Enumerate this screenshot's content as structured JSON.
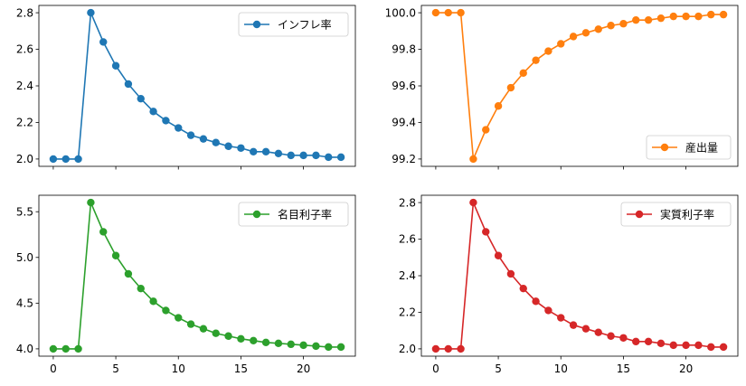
{
  "chart_data": [
    {
      "type": "line",
      "x": [
        0,
        1,
        2,
        3,
        4,
        5,
        6,
        7,
        8,
        9,
        10,
        11,
        12,
        13,
        14,
        15,
        16,
        17,
        18,
        19,
        20,
        21,
        22,
        23
      ],
      "series": [
        {
          "name": "インフレ率",
          "color": "#1f77b4",
          "values": [
            2.0,
            2.0,
            2.0,
            2.8,
            2.64,
            2.51,
            2.41,
            2.33,
            2.26,
            2.21,
            2.17,
            2.13,
            2.11,
            2.09,
            2.07,
            2.06,
            2.04,
            2.04,
            2.03,
            2.02,
            2.02,
            2.02,
            2.01,
            2.01
          ]
        }
      ],
      "ylim": [
        1.96,
        2.84
      ],
      "xlim": [
        -1.15,
        24.15
      ],
      "yticks": [
        2.0,
        2.2,
        2.4,
        2.6,
        2.8
      ],
      "ytick_labels": [
        "2.0",
        "2.2",
        "2.4",
        "2.6",
        "2.8"
      ],
      "xticks": [
        0,
        5,
        10,
        15,
        20
      ],
      "xtick_labels": [],
      "legend_position": "top-right",
      "grid": false
    },
    {
      "type": "line",
      "x": [
        0,
        1,
        2,
        3,
        4,
        5,
        6,
        7,
        8,
        9,
        10,
        11,
        12,
        13,
        14,
        15,
        16,
        17,
        18,
        19,
        20,
        21,
        22,
        23
      ],
      "series": [
        {
          "name": "産出量",
          "color": "#ff7f0e",
          "values": [
            100.0,
            100.0,
            100.0,
            99.2,
            99.36,
            99.49,
            99.59,
            99.67,
            99.74,
            99.79,
            99.83,
            99.87,
            99.89,
            99.91,
            99.93,
            99.94,
            99.96,
            99.96,
            99.97,
            99.98,
            99.98,
            99.98,
            99.99,
            99.99
          ]
        }
      ],
      "ylim": [
        99.16,
        100.04
      ],
      "xlim": [
        -1.15,
        24.15
      ],
      "yticks": [
        99.2,
        99.4,
        99.6,
        99.8,
        100.0
      ],
      "ytick_labels": [
        "99.2",
        "99.4",
        "99.6",
        "99.8",
        "100.0"
      ],
      "xticks": [
        0,
        5,
        10,
        15,
        20
      ],
      "xtick_labels": [],
      "legend_position": "bottom-right",
      "grid": false
    },
    {
      "type": "line",
      "x": [
        0,
        1,
        2,
        3,
        4,
        5,
        6,
        7,
        8,
        9,
        10,
        11,
        12,
        13,
        14,
        15,
        16,
        17,
        18,
        19,
        20,
        21,
        22,
        23
      ],
      "series": [
        {
          "name": "名目利子率",
          "color": "#2ca02c",
          "values": [
            4.0,
            4.0,
            4.0,
            5.6,
            5.28,
            5.02,
            4.82,
            4.66,
            4.52,
            4.42,
            4.34,
            4.27,
            4.22,
            4.17,
            4.14,
            4.11,
            4.09,
            4.07,
            4.06,
            4.05,
            4.04,
            4.03,
            4.02,
            4.02
          ]
        }
      ],
      "ylim": [
        3.92,
        5.68
      ],
      "xlim": [
        -1.15,
        24.15
      ],
      "yticks": [
        4.0,
        4.5,
        5.0,
        5.5
      ],
      "ytick_labels": [
        "4.0",
        "4.5",
        "5.0",
        "5.5"
      ],
      "xticks": [
        0,
        5,
        10,
        15,
        20
      ],
      "xtick_labels": [
        "0",
        "5",
        "10",
        "15",
        "20"
      ],
      "legend_position": "top-right",
      "grid": false
    },
    {
      "type": "line",
      "x": [
        0,
        1,
        2,
        3,
        4,
        5,
        6,
        7,
        8,
        9,
        10,
        11,
        12,
        13,
        14,
        15,
        16,
        17,
        18,
        19,
        20,
        21,
        22,
        23
      ],
      "series": [
        {
          "name": "実質利子率",
          "color": "#d62728",
          "values": [
            2.0,
            2.0,
            2.0,
            2.8,
            2.64,
            2.51,
            2.41,
            2.33,
            2.26,
            2.21,
            2.17,
            2.13,
            2.11,
            2.09,
            2.07,
            2.06,
            2.04,
            2.04,
            2.03,
            2.02,
            2.02,
            2.02,
            2.01,
            2.01
          ]
        }
      ],
      "ylim": [
        1.96,
        2.84
      ],
      "xlim": [
        -1.15,
        24.15
      ],
      "yticks": [
        2.0,
        2.2,
        2.4,
        2.6,
        2.8
      ],
      "ytick_labels": [
        "2.0",
        "2.2",
        "2.4",
        "2.6",
        "2.8"
      ],
      "xticks": [
        0,
        5,
        10,
        15,
        20
      ],
      "xtick_labels": [
        "0",
        "5",
        "10",
        "15",
        "20"
      ],
      "legend_position": "top-right",
      "grid": false
    }
  ]
}
